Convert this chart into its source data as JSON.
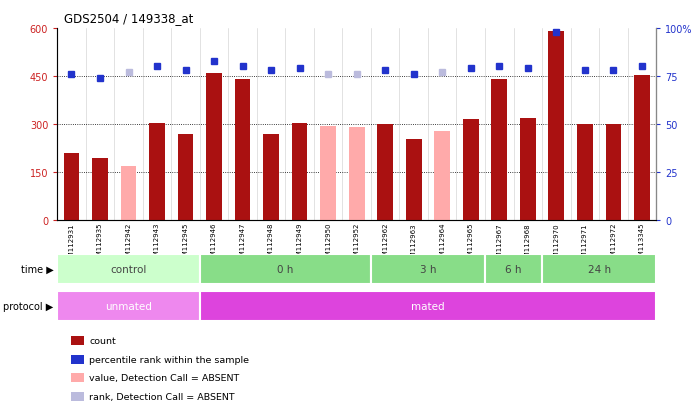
{
  "title": "GDS2504 / 149338_at",
  "samples": [
    "GSM112931",
    "GSM112935",
    "GSM112942",
    "GSM112943",
    "GSM112945",
    "GSM112946",
    "GSM112947",
    "GSM112948",
    "GSM112949",
    "GSM112950",
    "GSM112952",
    "GSM112962",
    "GSM112963",
    "GSM112964",
    "GSM112965",
    "GSM112967",
    "GSM112968",
    "GSM112970",
    "GSM112971",
    "GSM112972",
    "GSM113345"
  ],
  "count_values": [
    210,
    195,
    170,
    305,
    270,
    460,
    440,
    270,
    305,
    295,
    290,
    300,
    255,
    280,
    315,
    440,
    320,
    590,
    300,
    300,
    455
  ],
  "count_absent": [
    false,
    false,
    true,
    false,
    false,
    false,
    false,
    false,
    false,
    true,
    true,
    false,
    false,
    true,
    false,
    false,
    false,
    false,
    false,
    false,
    false
  ],
  "rank_values": [
    76,
    74,
    77,
    80,
    78,
    83,
    80,
    78,
    79,
    76,
    76,
    78,
    76,
    77,
    79,
    80,
    79,
    98,
    78,
    78,
    80
  ],
  "rank_absent": [
    false,
    false,
    true,
    false,
    false,
    false,
    false,
    false,
    false,
    true,
    true,
    false,
    false,
    true,
    false,
    false,
    false,
    false,
    false,
    false,
    false
  ],
  "time_groups": [
    {
      "label": "control",
      "start": 0,
      "end": 5
    },
    {
      "label": "0 h",
      "start": 5,
      "end": 11
    },
    {
      "label": "3 h",
      "start": 11,
      "end": 15
    },
    {
      "label": "6 h",
      "start": 15,
      "end": 17
    },
    {
      "label": "24 h",
      "start": 17,
      "end": 21
    }
  ],
  "protocol_groups": [
    {
      "label": "unmated",
      "start": 0,
      "end": 5
    },
    {
      "label": "mated",
      "start": 5,
      "end": 21
    }
  ],
  "time_color_light": "#ccffcc",
  "time_color_dark": "#88dd88",
  "proto_color_unmated": "#ee88ee",
  "proto_color_mated": "#dd44dd",
  "bar_color_present": "#aa1111",
  "bar_color_absent": "#ffaaaa",
  "dot_color_present": "#2233cc",
  "dot_color_absent": "#bbbbdd",
  "ylim_left": [
    0,
    600
  ],
  "ylim_right": [
    0,
    100
  ],
  "yticks_left": [
    0,
    150,
    300,
    450,
    600
  ],
  "yticks_right": [
    0,
    25,
    50,
    75,
    100
  ],
  "hgrid_values": [
    150,
    300,
    450
  ],
  "background_color": "#ffffff",
  "legend_items": [
    {
      "color": "#aa1111",
      "label": "count"
    },
    {
      "color": "#2233cc",
      "label": "percentile rank within the sample"
    },
    {
      "color": "#ffaaaa",
      "label": "value, Detection Call = ABSENT"
    },
    {
      "color": "#bbbbdd",
      "label": "rank, Detection Call = ABSENT"
    }
  ]
}
